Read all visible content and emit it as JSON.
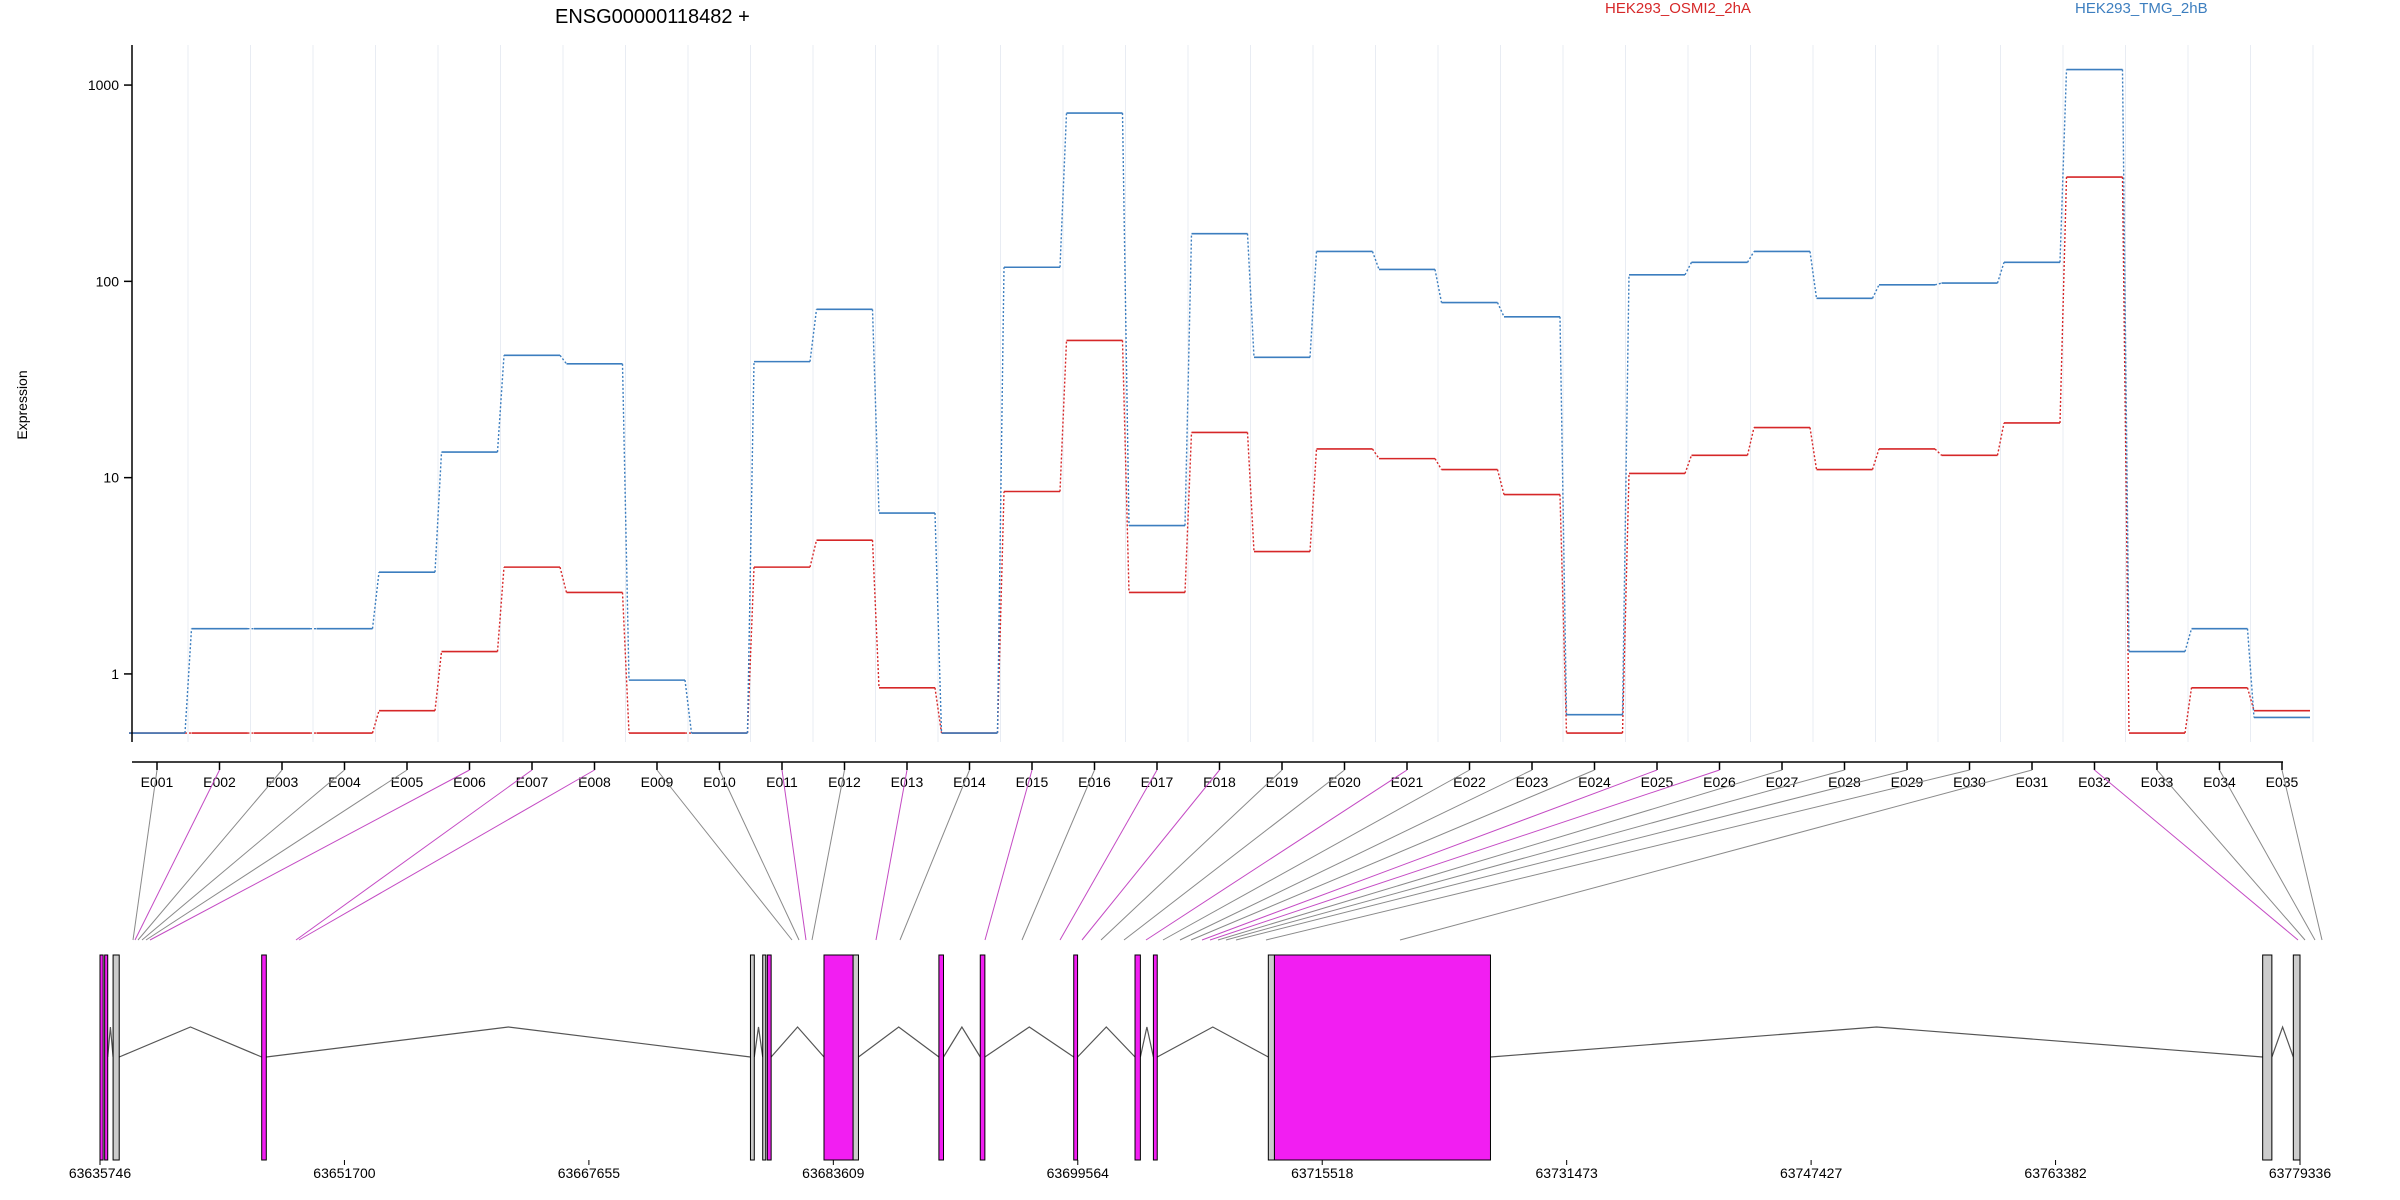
{
  "chart_data": {
    "type": "line",
    "title": "ENSG00000118482 +",
    "ylabel": "Expression",
    "yscale": "log",
    "ylim": [
      0.45,
      1600
    ],
    "yticks": [
      {
        "value": 1,
        "label": "1"
      },
      {
        "value": 10,
        "label": "10"
      },
      {
        "value": 100,
        "label": "100"
      },
      {
        "value": 1000,
        "label": "1000"
      }
    ],
    "grid": "vertical-minor",
    "legend_placement": "top",
    "categories": [
      "E001",
      "E002",
      "E003",
      "E004",
      "E005",
      "E006",
      "E007",
      "E008",
      "E009",
      "E010",
      "E011",
      "E012",
      "E013",
      "E014",
      "E015",
      "E016",
      "E017",
      "E018",
      "E019",
      "E020",
      "E021",
      "E022",
      "E023",
      "E024",
      "E025",
      "E026",
      "E027",
      "E028",
      "E029",
      "E030",
      "E031",
      "E032",
      "E033",
      "E034",
      "E035"
    ],
    "series": [
      {
        "name": "HEK293_OSMI2_2hA",
        "color": "#d62728",
        "values": [
          0.5,
          0.5,
          0.5,
          0.5,
          0.65,
          1.3,
          3.5,
          2.6,
          0.5,
          0.5,
          3.5,
          4.8,
          0.85,
          0.5,
          8.5,
          50,
          2.6,
          17,
          4.2,
          14,
          12.5,
          11,
          8.2,
          0.5,
          10.5,
          13,
          18,
          11,
          14,
          13,
          19,
          340,
          0.5,
          0.85,
          0.65
        ]
      },
      {
        "name": "HEK293_TMG_2hB",
        "color": "#3c7ebf",
        "values": [
          0.5,
          1.7,
          1.7,
          1.7,
          3.3,
          13.5,
          42,
          38,
          0.93,
          0.5,
          39,
          72,
          6.6,
          0.5,
          118,
          720,
          5.7,
          175,
          41,
          142,
          115,
          78,
          66,
          0.62,
          108,
          125,
          142,
          82,
          96,
          98,
          125,
          1200,
          1.3,
          1.7,
          0.6
        ]
      }
    ],
    "gene_model": {
      "coordinate_ticks": [
        "63635746",
        "63651700",
        "63667655",
        "63683609",
        "63699564",
        "63715518",
        "63731473",
        "63747427",
        "63763382",
        "63779336"
      ],
      "genomic_range": [
        63635746,
        63779336
      ],
      "exon_color": "#f21ef2",
      "constitutive_color": "#cccccc",
      "exons_with_expression_difference": [
        "E002",
        "E006",
        "E007",
        "E008",
        "E011",
        "E013",
        "E015",
        "E017",
        "E018",
        "E021",
        "E025",
        "E026",
        "E032"
      ],
      "features": [
        {
          "start": 63635746,
          "end": 63635950,
          "kind": "exon"
        },
        {
          "start": 63636050,
          "end": 63636250,
          "kind": "exon"
        },
        {
          "start": 63636600,
          "end": 63637000,
          "kind": "constitutive"
        },
        {
          "start": 63646300,
          "end": 63646600,
          "kind": "exon"
        },
        {
          "start": 63678200,
          "end": 63678450,
          "kind": "constitutive"
        },
        {
          "start": 63679000,
          "end": 63679200,
          "kind": "constitutive"
        },
        {
          "start": 63679300,
          "end": 63679550,
          "kind": "exon"
        },
        {
          "start": 63683000,
          "end": 63684900,
          "kind": "exon"
        },
        {
          "start": 63684900,
          "end": 63685250,
          "kind": "constitutive"
        },
        {
          "start": 63690500,
          "end": 63690800,
          "kind": "exon"
        },
        {
          "start": 63693200,
          "end": 63693500,
          "kind": "exon"
        },
        {
          "start": 63699300,
          "end": 63699550,
          "kind": "exon"
        },
        {
          "start": 63703300,
          "end": 63703650,
          "kind": "exon"
        },
        {
          "start": 63704500,
          "end": 63704750,
          "kind": "exon"
        },
        {
          "start": 63712000,
          "end": 63712400,
          "kind": "constitutive"
        },
        {
          "start": 63712400,
          "end": 63726500,
          "kind": "exon"
        },
        {
          "start": 63776900,
          "end": 63777500,
          "kind": "constitutive"
        },
        {
          "start": 63778900,
          "end": 63779336,
          "kind": "constitutive"
        }
      ]
    }
  }
}
